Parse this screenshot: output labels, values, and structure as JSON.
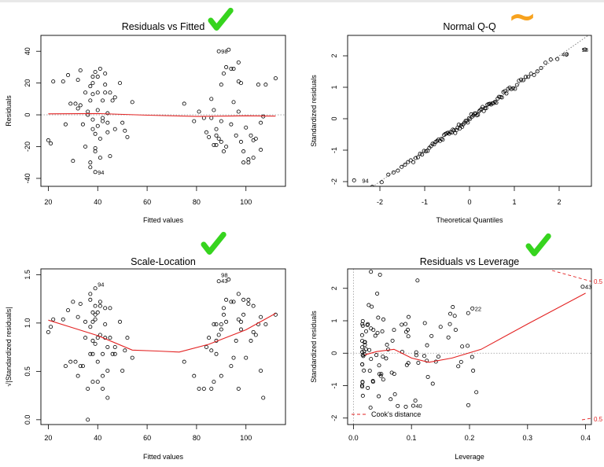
{
  "chart_data": [
    {
      "type": "scatter",
      "title": "Residuals vs Fitted",
      "xlabel": "Fitted values",
      "ylabel": "Residuals",
      "xlim": [
        17,
        116
      ],
      "ylim": [
        -45,
        50
      ],
      "xticks": [
        20,
        40,
        60,
        80,
        100
      ],
      "yticks": [
        -40,
        -20,
        0,
        20,
        40
      ],
      "hline": 0,
      "points": [
        [
          20,
          -16
        ],
        [
          21,
          -18
        ],
        [
          22,
          21
        ],
        [
          26,
          21
        ],
        [
          27,
          -6
        ],
        [
          28,
          25
        ],
        [
          29,
          7
        ],
        [
          30,
          -29
        ],
        [
          31,
          7
        ],
        [
          32,
          4
        ],
        [
          32,
          22
        ],
        [
          33,
          28
        ],
        [
          33,
          6
        ],
        [
          34,
          -6
        ],
        [
          35,
          14
        ],
        [
          35,
          -20
        ],
        [
          36,
          0
        ],
        [
          36,
          2
        ],
        [
          37,
          18
        ],
        [
          37,
          9
        ],
        [
          37,
          -30
        ],
        [
          37,
          -33
        ],
        [
          38,
          -9
        ],
        [
          38,
          24
        ],
        [
          38,
          20
        ],
        [
          38,
          13
        ],
        [
          38,
          -3
        ],
        [
          39,
          27
        ],
        [
          39,
          -21
        ],
        [
          39,
          -23
        ],
        [
          39,
          -36
        ],
        [
          39,
          -12
        ],
        [
          40,
          24
        ],
        [
          40,
          14
        ],
        [
          40,
          3
        ],
        [
          40,
          -7
        ],
        [
          41,
          29
        ],
        [
          41,
          -15
        ],
        [
          41,
          -27
        ],
        [
          42,
          9
        ],
        [
          42,
          -4
        ],
        [
          42,
          -2
        ],
        [
          43,
          19
        ],
        [
          43,
          14
        ],
        [
          43,
          26
        ],
        [
          44,
          -11
        ],
        [
          44,
          1
        ],
        [
          44,
          -5
        ],
        [
          45,
          14
        ],
        [
          45,
          -26
        ],
        [
          46,
          9
        ],
        [
          47,
          11
        ],
        [
          47,
          -9
        ],
        [
          49,
          20
        ],
        [
          50,
          -5
        ],
        [
          51,
          -10
        ],
        [
          52,
          -14
        ],
        [
          54,
          8
        ],
        [
          75,
          7
        ],
        [
          79,
          -4
        ],
        [
          81,
          2
        ],
        [
          83,
          -2
        ],
        [
          84,
          -11
        ],
        [
          85,
          -14
        ],
        [
          86,
          10
        ],
        [
          86,
          -2
        ],
        [
          87,
          3
        ],
        [
          87,
          -19
        ],
        [
          88,
          -9
        ],
        [
          88,
          -13
        ],
        [
          88,
          -19
        ],
        [
          89,
          -15
        ],
        [
          89,
          40
        ],
        [
          90,
          -17
        ],
        [
          90,
          19
        ],
        [
          90,
          -4
        ],
        [
          91,
          26
        ],
        [
          91,
          -23
        ],
        [
          92,
          -20
        ],
        [
          92,
          30
        ],
        [
          93,
          41
        ],
        [
          94,
          29
        ],
        [
          94,
          -6
        ],
        [
          95,
          8
        ],
        [
          95,
          29
        ],
        [
          96,
          -13
        ],
        [
          97,
          2
        ],
        [
          97,
          21
        ],
        [
          97,
          33
        ],
        [
          98,
          20
        ],
        [
          98,
          -17
        ],
        [
          99,
          -23
        ],
        [
          99,
          -30
        ],
        [
          100,
          -8
        ],
        [
          101,
          -30
        ],
        [
          101,
          -28
        ],
        [
          102,
          -13
        ],
        [
          103,
          -16
        ],
        [
          103,
          -27
        ],
        [
          104,
          -15
        ],
        [
          105,
          19
        ],
        [
          106,
          -5
        ],
        [
          106,
          -22
        ],
        [
          107,
          -1
        ],
        [
          108,
          19
        ],
        [
          112,
          23
        ]
      ],
      "labels": [
        {
          "x": 89,
          "y": 40,
          "text": "98"
        },
        {
          "x": 39,
          "y": -36,
          "text": "94"
        }
      ],
      "smooth": [
        [
          20,
          0.6
        ],
        [
          40,
          0.8
        ],
        [
          60,
          -0.2
        ],
        [
          80,
          -1.0
        ],
        [
          100,
          -0.6
        ],
        [
          112,
          -0.8
        ]
      ]
    },
    {
      "type": "scatter",
      "title": "Normal Q-Q",
      "xlabel": "Theoretical Quantiles",
      "ylabel": "Standardized residuals",
      "xlim": [
        -2.72,
        2.72
      ],
      "ylim": [
        -2.15,
        2.65
      ],
      "xticks": [
        -2,
        -1,
        0,
        1,
        2
      ],
      "yticks": [
        -2,
        -1,
        0,
        1,
        2
      ],
      "refline": [
        [
          -2.72,
          -2.72
        ],
        [
          2.72,
          2.72
        ]
      ],
      "labels": [
        {
          "x": 2.45,
          "y": 2.2,
          "text": "98"
        },
        {
          "x": 2.0,
          "y": 2.05,
          "text": "43"
        },
        {
          "x": -2.45,
          "y": -1.96,
          "text": "94"
        }
      ]
    },
    {
      "type": "scatter",
      "title": "Scale-Location",
      "xlabel": "Fitted values",
      "ylabel": "√|Standardized residuals|",
      "xlim": [
        17,
        116
      ],
      "ylim": [
        -0.05,
        1.56
      ],
      "xticks": [
        20,
        40,
        60,
        80,
        100
      ],
      "yticks": [
        0.0,
        0.5,
        1.0,
        1.5
      ],
      "labels": [
        {
          "x": 39,
          "y": 1.4,
          "text": "94"
        },
        {
          "x": 89,
          "y": 1.5,
          "text": "98"
        },
        {
          "x": 89,
          "y": 1.44,
          "text": "43"
        }
      ],
      "smooth": [
        [
          20,
          1.03
        ],
        [
          30,
          0.95
        ],
        [
          40,
          0.87
        ],
        [
          54,
          0.72
        ],
        [
          64,
          0.71
        ],
        [
          73,
          0.7
        ],
        [
          85,
          0.78
        ],
        [
          100,
          0.93
        ],
        [
          112,
          1.1
        ]
      ]
    },
    {
      "type": "scatter",
      "title": "Residuals vs Leverage",
      "xlabel": "Leverage",
      "ylabel": "Standardized residuals",
      "xlim": [
        -0.01,
        0.41
      ],
      "ylim": [
        -2.2,
        2.6
      ],
      "xticks": [
        0.0,
        0.1,
        0.2,
        0.3,
        0.4
      ],
      "yticks": [
        -2,
        -1,
        0,
        1,
        2
      ],
      "hline": 0,
      "labels": [
        {
          "x": 0.205,
          "y": 1.38,
          "text": "22"
        },
        {
          "x": 0.395,
          "y": 2.05,
          "text": "43"
        },
        {
          "x": 0.103,
          "y": -1.62,
          "text": "40"
        }
      ],
      "smooth": [
        [
          0.02,
          -0.05
        ],
        [
          0.04,
          0.05
        ],
        [
          0.07,
          0.12
        ],
        [
          0.1,
          -0.15
        ],
        [
          0.13,
          -0.28
        ],
        [
          0.17,
          -0.15
        ],
        [
          0.22,
          0.12
        ],
        [
          0.3,
          0.9
        ],
        [
          0.4,
          1.85
        ]
      ],
      "cooks": {
        "label": "0.5",
        "legend": "Cook's distance"
      }
    }
  ],
  "annotations": {
    "check_color": "#36d41e",
    "tilde_color": "#f7a21e",
    "tilde_glyph": "~"
  }
}
